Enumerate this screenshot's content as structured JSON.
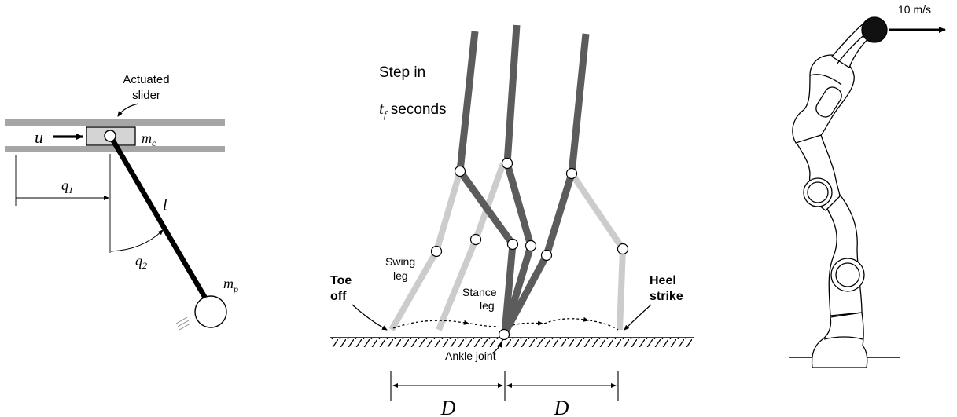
{
  "colors": {
    "ink": "#000000",
    "rail_gray": "#a6a6a6",
    "cart_fill": "#d4d4d4",
    "stance_dark": "#5c5c5c",
    "swing_light": "#cccccc",
    "joint_fill": "#ffffff",
    "head_black": "#111111"
  },
  "cartpole": {
    "slider_label_line1": "Actuated",
    "slider_label_line2": "slider",
    "u": "u",
    "m_c_base": "m",
    "m_c_sub": "c",
    "q1_base": "q",
    "q1_sub": "1",
    "q2_base": "q",
    "q2_sub": "2",
    "l": "l",
    "m_p_base": "m",
    "m_p_sub": "p"
  },
  "walker": {
    "step_line1": "Step in",
    "step_t_base": "t",
    "step_t_sub": "f",
    "step_line2_rest": " seconds",
    "swing_line1": "Swing",
    "swing_line2": "leg",
    "toe_line1": "Toe",
    "toe_line2": "off",
    "stance_line1": "Stance",
    "stance_line2": "leg",
    "heel_line1": "Heel",
    "heel_line2": "strike",
    "ankle": "Ankle joint",
    "d_left": "D",
    "d_right": "D"
  },
  "arm": {
    "speed": "10 m/s",
    "head-icon": "robot-arm-end-effector"
  }
}
